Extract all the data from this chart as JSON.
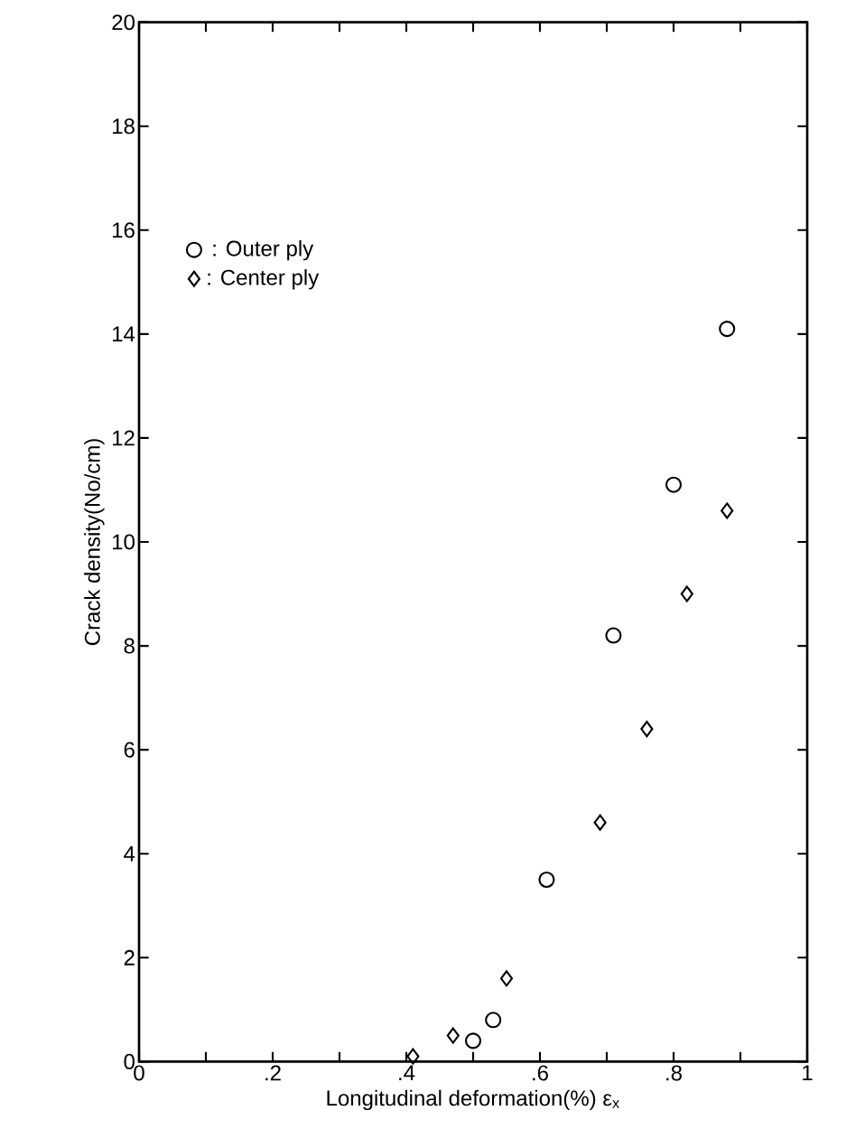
{
  "chart_data": {
    "type": "scatter",
    "xlabel": "Longitudinal deformation(%) ε$_{x}$",
    "ylabel": "Crack density(No/cm)",
    "series": [
      {
        "name": ": Outer ply",
        "color": "#000000",
        "marker": "circle",
        "x": [
          0.5,
          0.53,
          0.61,
          0.71,
          0.8,
          0.88
        ],
        "values": [
          0.4,
          0.8,
          3.5,
          8.2,
          11.1,
          14.1
        ]
      },
      {
        "name": ": Center ply",
        "color": "#000000",
        "marker": "diamond",
        "x": [
          0.41,
          0.47,
          0.55,
          0.69,
          0.76,
          0.82,
          0.88
        ],
        "values": [
          0.1,
          0.5,
          1.6,
          4.6,
          6.4,
          9.0,
          10.6
        ]
      }
    ],
    "xlim": [
      0,
      1
    ],
    "ylim": [
      0,
      20
    ],
    "xticks": [
      0,
      {
        "value": 0.1,
        "label": null
      },
      {
        "value": 0.2,
        "label": ".2"
      },
      {
        "value": 0.3,
        "label": null
      },
      {
        "value": 0.4,
        "label": ".4"
      },
      {
        "value": 0.5,
        "label": null
      },
      {
        "value": 0.6,
        "label": ".6"
      },
      {
        "value": 0.7,
        "label": null
      },
      {
        "value": 0.8,
        "label": ".8"
      },
      {
        "value": 0.9,
        "label": null
      },
      1
    ],
    "yticks": [
      0,
      2,
      4,
      6,
      8,
      10,
      12,
      14,
      16,
      18,
      20
    ],
    "legend": "top left",
    "grid": false
  }
}
